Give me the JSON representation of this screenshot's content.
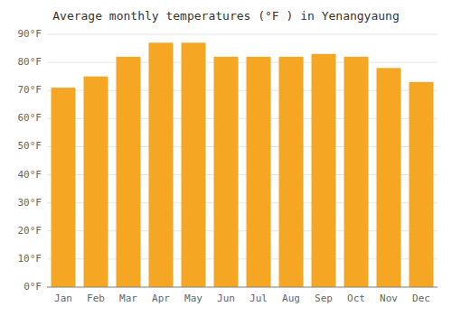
{
  "chart_data": {
    "type": "bar",
    "title": "Average monthly temperatures (°F ) in Yenangyaung",
    "categories": [
      "Jan",
      "Feb",
      "Mar",
      "Apr",
      "May",
      "Jun",
      "Jul",
      "Aug",
      "Sep",
      "Oct",
      "Nov",
      "Dec"
    ],
    "values": [
      71,
      75,
      82,
      87,
      87,
      82,
      82,
      82,
      83,
      82,
      78,
      73
    ],
    "color": "#F5A623",
    "ylim": [
      0,
      90
    ],
    "yticks": [
      {
        "value": 0,
        "label": "0°F"
      },
      {
        "value": 10,
        "label": "10°F"
      },
      {
        "value": 20,
        "label": "20°F"
      },
      {
        "value": 30,
        "label": "30°F"
      },
      {
        "value": 40,
        "label": "40°F"
      },
      {
        "value": 50,
        "label": "50°F"
      },
      {
        "value": 60,
        "label": "60°F"
      },
      {
        "value": 70,
        "label": "70°F"
      },
      {
        "value": 80,
        "label": "80°F"
      },
      {
        "value": 90,
        "label": "90°F"
      }
    ],
    "grid": true
  }
}
